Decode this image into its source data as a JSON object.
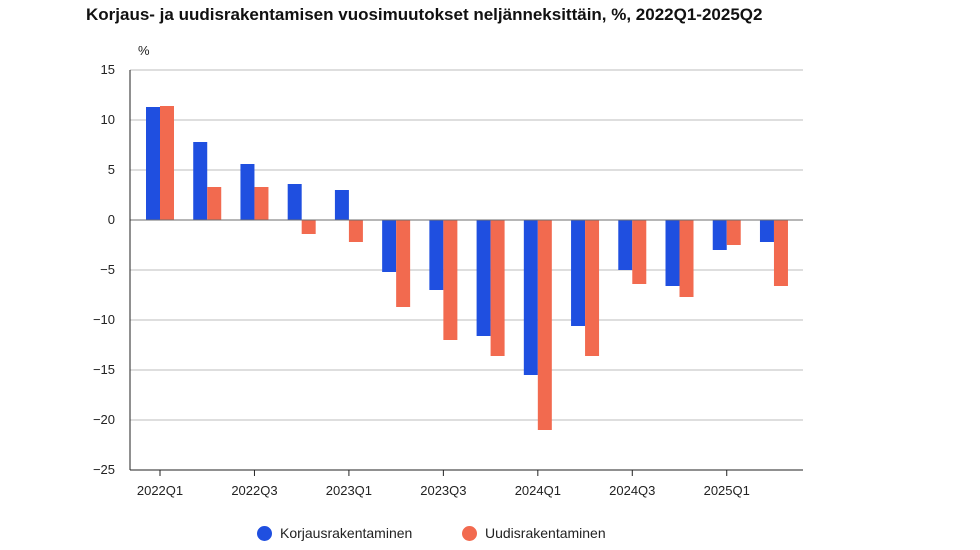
{
  "chart_data": {
    "type": "bar",
    "title": "Korjaus- ja uudisrakentamisen vuosimuutokset neljänneksittäin, %, 2022Q1-2025Q2",
    "ylabel": "%",
    "xlabel": "",
    "ylim": [
      -25,
      15
    ],
    "yticks": [
      15,
      10,
      5,
      0,
      -5,
      -10,
      -15,
      -20,
      -25
    ],
    "ytick_labels": [
      "15",
      "10",
      "5",
      "0",
      "−5",
      "−10",
      "−15",
      "−20",
      "−25"
    ],
    "grid": true,
    "legend_position": "bottom",
    "categories": [
      "2022Q1",
      "2022Q2",
      "2022Q3",
      "2022Q4",
      "2023Q1",
      "2023Q2",
      "2023Q3",
      "2023Q4",
      "2024Q1",
      "2024Q2",
      "2024Q3",
      "2024Q4",
      "2025Q1",
      "2025Q2"
    ],
    "xtick_labels": [
      "2022Q1",
      "",
      "2022Q3",
      "",
      "2023Q1",
      "",
      "2023Q3",
      "",
      "2024Q1",
      "",
      "2024Q3",
      "",
      "2025Q1",
      ""
    ],
    "series": [
      {
        "name": "Korjausrakentaminen",
        "color": "#1f4fe0",
        "values": [
          11.3,
          7.8,
          5.6,
          3.6,
          3.0,
          -5.2,
          -7.0,
          -11.6,
          -15.5,
          -10.6,
          -5.0,
          -6.6,
          -3.0,
          -2.2
        ]
      },
      {
        "name": "Uudisrakentaminen",
        "color": "#f26a4f",
        "values": [
          11.4,
          3.3,
          3.3,
          -1.4,
          -2.2,
          -8.7,
          -12.0,
          -13.6,
          -21.0,
          -13.6,
          -6.4,
          -7.7,
          -2.5,
          -6.6
        ]
      }
    ]
  }
}
